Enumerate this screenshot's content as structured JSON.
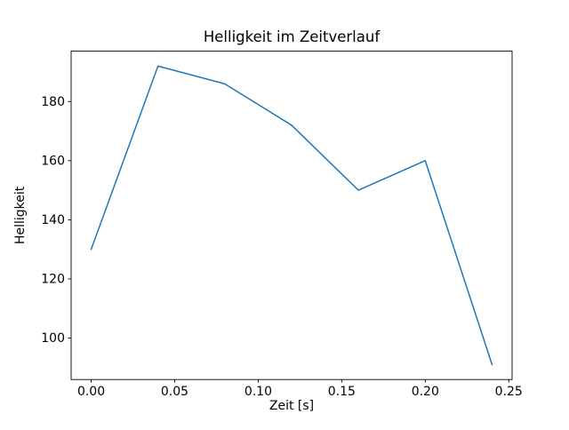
{
  "chart_data": {
    "type": "line",
    "title": "Helligkeit im Zeitverlauf",
    "xlabel": "Zeit [s]",
    "ylabel": "Helligkeit",
    "x": [
      0.0,
      0.04,
      0.08,
      0.12,
      0.16,
      0.2,
      0.24
    ],
    "values": [
      130,
      192,
      186,
      172,
      150,
      160,
      91
    ],
    "xlim": [
      -0.012,
      0.252
    ],
    "ylim": [
      85.95,
      197.05
    ],
    "x_ticks": {
      "values": [
        0.0,
        0.05,
        0.1,
        0.15,
        0.2,
        0.25
      ],
      "labels": [
        "0.00",
        "0.05",
        "0.10",
        "0.15",
        "0.20",
        "0.25"
      ]
    },
    "y_ticks": {
      "values": [
        100,
        120,
        140,
        160,
        180
      ],
      "labels": [
        "100",
        "120",
        "140",
        "160",
        "180"
      ]
    },
    "line_color": "#1f77b4",
    "grid": false,
    "legend": null,
    "plot_background": "#ffffff"
  }
}
